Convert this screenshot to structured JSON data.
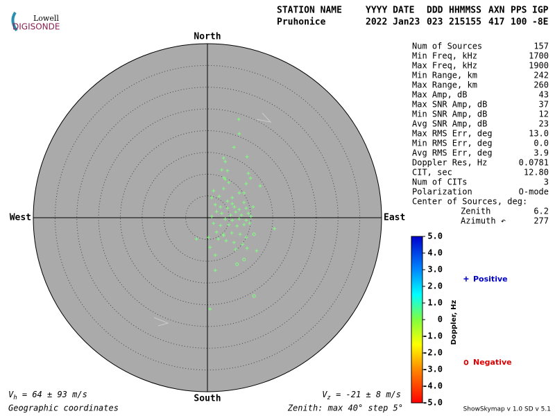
{
  "logo": {
    "top": "Lowell",
    "bottom": "DIGISONDE"
  },
  "header": {
    "columns": [
      "STATION NAME",
      "YYYY DATE",
      "DDD",
      "HHMMSS",
      "AXN",
      "PPS",
      "IGP"
    ],
    "values": [
      "Pruhonice",
      "2022 Jan23",
      "023",
      "215155",
      "417",
      "100",
      "-8E"
    ]
  },
  "stats": [
    {
      "label": "Num of Sources",
      "value": "157"
    },
    {
      "label": "Min Freq, kHz",
      "value": "1700"
    },
    {
      "label": "Max Freq, kHz",
      "value": "1900"
    },
    {
      "label": "Min Range, km",
      "value": "242"
    },
    {
      "label": "Max Range, km",
      "value": "260"
    },
    {
      "label": "Max Amp, dB",
      "value": "43"
    },
    {
      "label": "Max SNR Amp, dB",
      "value": "37"
    },
    {
      "label": "Min SNR Amp, dB",
      "value": "12"
    },
    {
      "label": "Avg SNR Amp, dB",
      "value": "23"
    },
    {
      "label": "Max RMS Err, deg",
      "value": "13.0"
    },
    {
      "label": "Min RMS Err, deg",
      "value": "0.0"
    },
    {
      "label": "Avg RMS Err, deg",
      "value": "3.9"
    },
    {
      "label": "Doppler Res, Hz",
      "value": "0.0781"
    },
    {
      "label": "CIT, sec",
      "value": "12.80"
    },
    {
      "label": "Num of CITs",
      "value": "3"
    },
    {
      "label": "Polarization",
      "value": "O-mode"
    }
  ],
  "center": {
    "title": "Center of Sources, deg:",
    "rows": [
      {
        "label": "Zenith",
        "value": "6.2"
      },
      {
        "label": "Azimuth ↶",
        "value": "277"
      }
    ]
  },
  "chart_data": {
    "type": "skymap",
    "directions": {
      "north": "North",
      "south": "South",
      "east": "East",
      "west": "West"
    },
    "rlim": [
      0,
      40
    ],
    "rticks": [
      5,
      10,
      15,
      20,
      25,
      30,
      35
    ],
    "series": [
      {
        "name": "Positive",
        "symbol": "+",
        "color": "#80ff80",
        "legend_color": "#0000cc",
        "x": [
          7.2,
          7.3,
          6.1,
          3.7,
          4.1,
          9.1,
          3.3,
          4.6,
          3.8,
          4.1,
          4.9,
          9.4,
          9.9,
          8.9,
          12.1,
          1.4,
          3.7,
          7.3,
          8.4,
          1.0,
          2.7,
          5.7,
          8.4,
          1.8,
          3.0,
          4.6,
          6.2,
          7.3,
          8.9,
          10.5,
          2.1,
          3.3,
          5.3,
          6.5,
          7.8,
          9.4,
          4.1,
          5.7,
          7.3,
          8.9,
          1.4,
          3.0,
          4.9,
          6.8,
          8.4,
          9.7,
          15.4,
          2.1,
          3.7,
          5.6,
          7.5,
          8.9,
          -2.5,
          0.6,
          1.8,
          3.7,
          8.1,
          6.5,
          9.1,
          11.3,
          1.8,
          0.6,
          0.2,
          2.5,
          4.3,
          6.1,
          10.0,
          1.0,
          4.6,
          5.7
        ],
        "y": [
          22.6,
          19.3,
          16.2,
          13.7,
          12.9,
          14.0,
          11.0,
          10.8,
          9.2,
          8.9,
          8.1,
          10.2,
          9.1,
          7.8,
          7.3,
          6.2,
          6.7,
          5.7,
          5.7,
          4.6,
          4.9,
          4.6,
          3.5,
          3.0,
          2.5,
          2.2,
          2.5,
          1.9,
          2.2,
          2.5,
          1.4,
          1.0,
          0.6,
          1.3,
          0.6,
          1.0,
          -0.3,
          -0.6,
          -0.3,
          -0.6,
          -1.3,
          -1.8,
          -1.6,
          -1.9,
          -1.6,
          -1.3,
          -2.5,
          -3.3,
          -3.8,
          -3.5,
          -3.8,
          -4.5,
          -4.9,
          -6.8,
          -8.6,
          -4.1,
          -6.1,
          -7.3,
          -7.0,
          -7.6,
          -12.1,
          -21.0,
          -4.5,
          -4.9,
          -5.3,
          -5.7,
          0.3,
          0.3,
          3.8,
          3.2
        ]
      },
      {
        "name": "Negative",
        "symbol": "o",
        "color": "#80ff80",
        "legend_color": "#dd0000",
        "x": [
          10.7,
          8.4,
          10.7,
          6.8
        ],
        "y": [
          -3.8,
          -9.6,
          -18.0,
          -10.7
        ]
      }
    ],
    "colorbar": {
      "label": "Doppler, Hz",
      "lim": [
        -5,
        5
      ],
      "ticks": [
        {
          "value": 5,
          "label": "5.0"
        },
        {
          "value": 4,
          "label": "4.0"
        },
        {
          "value": 3,
          "label": "3.0"
        },
        {
          "value": 2,
          "label": "2.0"
        },
        {
          "value": 1,
          "label": "1.0"
        },
        0,
        {
          "value": -1,
          "label": "-1.0"
        },
        {
          "value": -2,
          "label": "-2.0"
        },
        {
          "value": -3,
          "label": "-3.0"
        },
        {
          "value": -4,
          "label": "-4.0"
        },
        {
          "value": -5,
          "label": "-5.0"
        }
      ]
    }
  },
  "footer": {
    "vh": {
      "symbol": "V",
      "sub": "h",
      "text": " = 64 ± 93 m/s"
    },
    "vz": {
      "symbol": "V",
      "sub": "z",
      "text": " = -21 ± 8 m/s"
    },
    "coords": "Geographic coordinates",
    "zenith": "Zenith: max 40°  step 5°",
    "version": "ShowSkymap v 1.0  SD v 5.1"
  }
}
